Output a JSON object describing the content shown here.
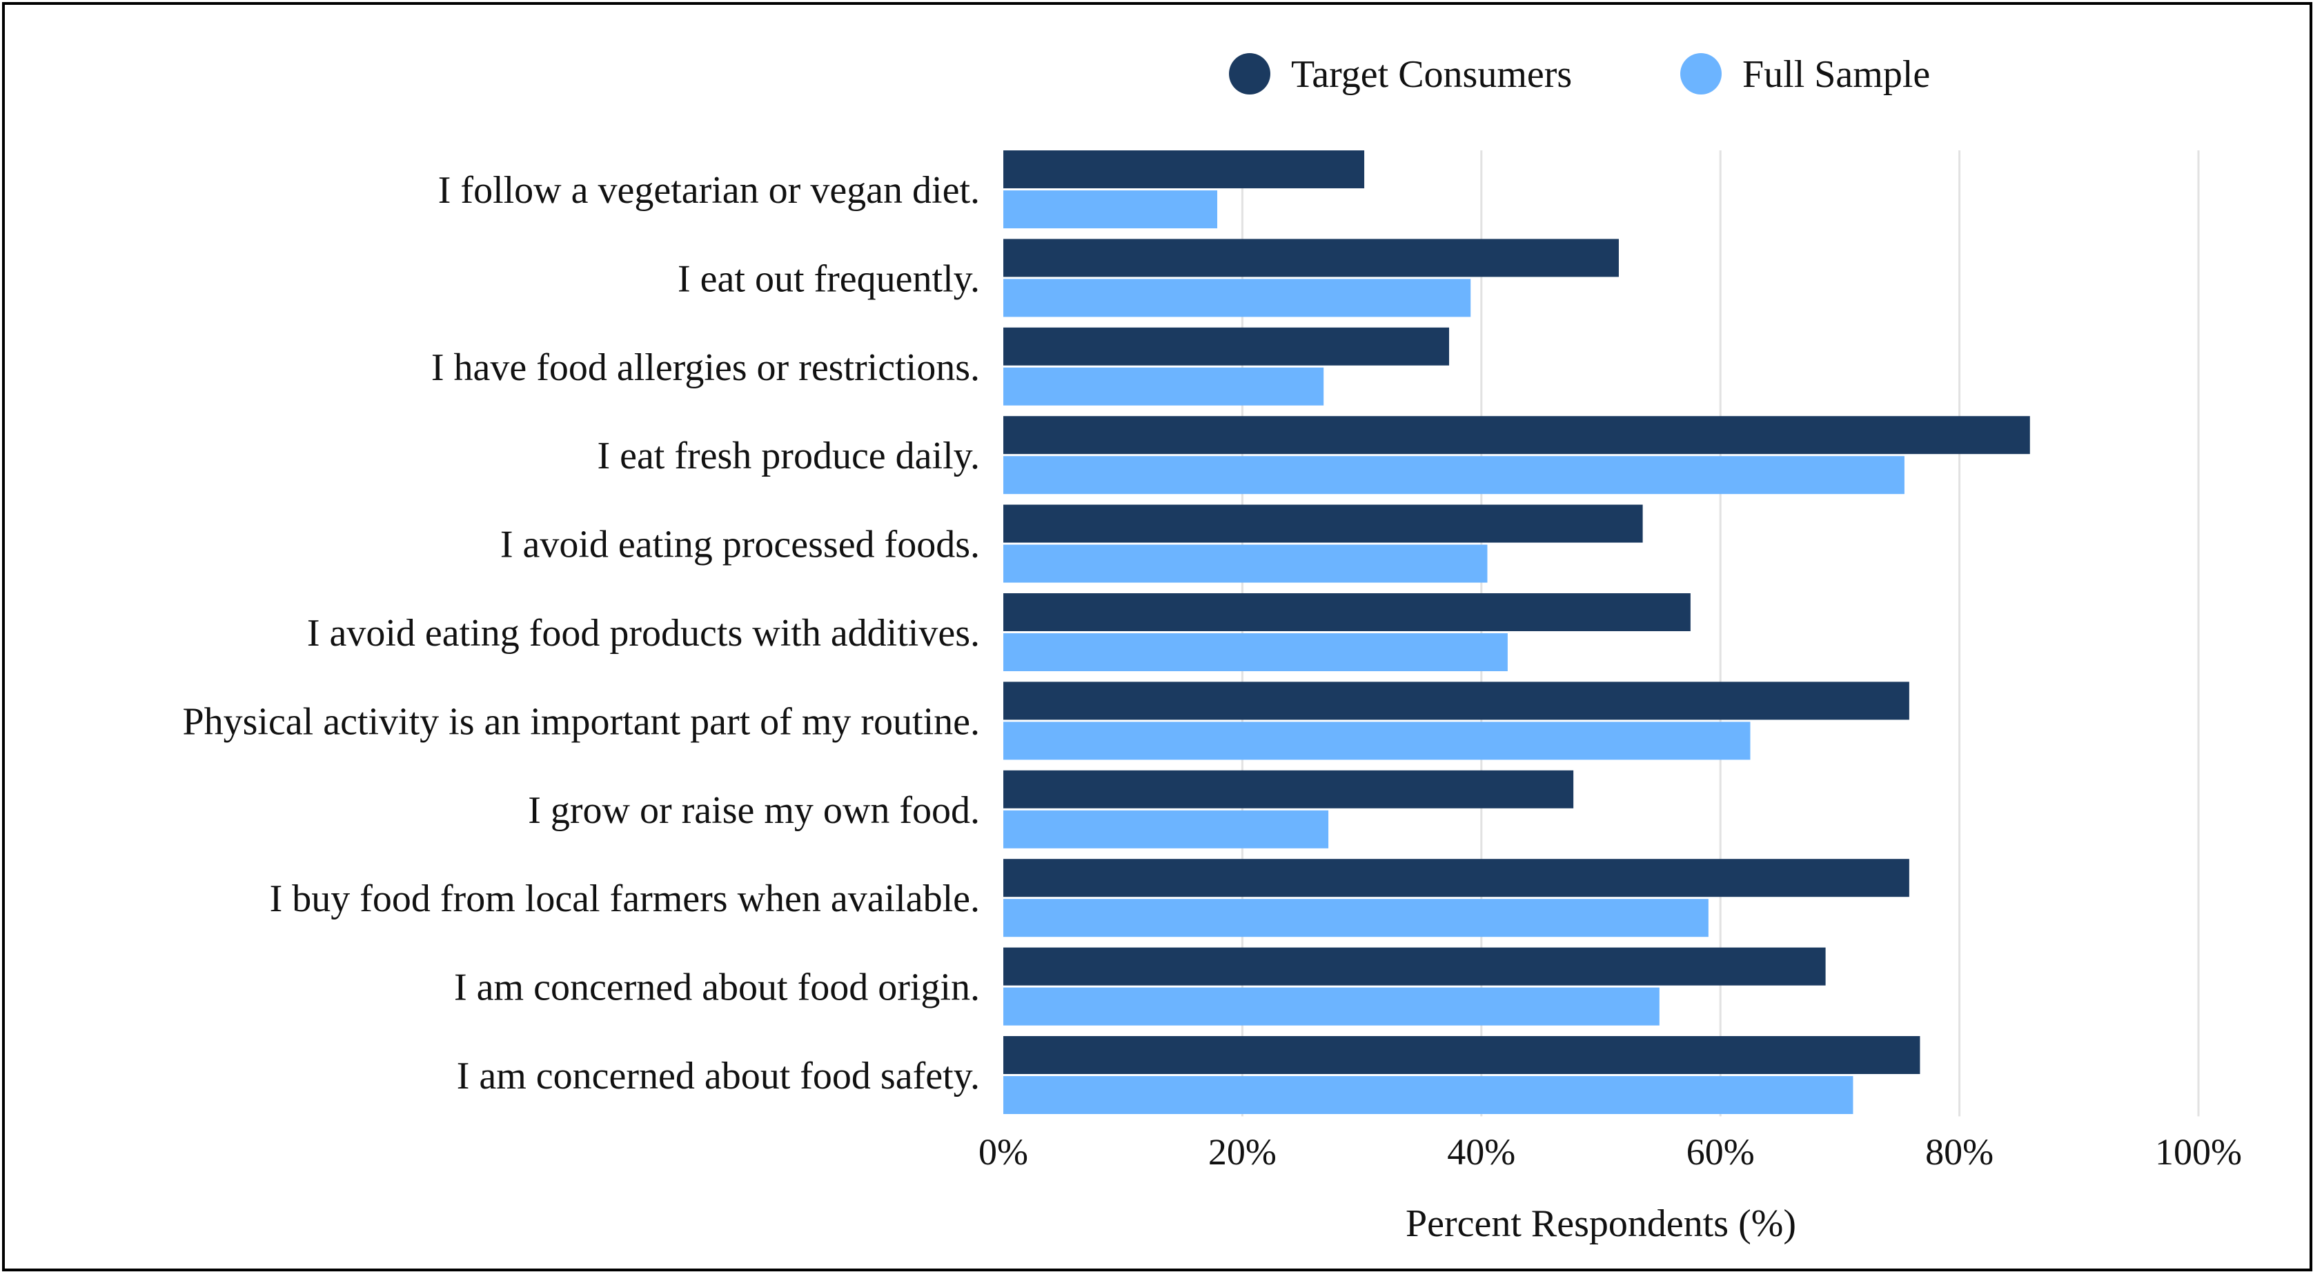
{
  "chart_data": {
    "type": "bar",
    "orientation": "horizontal",
    "title": "",
    "xlabel": "Percent Respondents (%)",
    "ylabel": "",
    "xlim": [
      0,
      100
    ],
    "x_ticks": [
      "0%",
      "20%",
      "40%",
      "60%",
      "80%",
      "100%"
    ],
    "grid": "vertical",
    "legend_position": "top-right",
    "categories": [
      "I follow a vegetarian or vegan diet.",
      "I eat out frequently.",
      "I have food allergies or restrictions.",
      "I eat fresh produce daily.",
      "I avoid eating processed foods.",
      "I avoid eating food products with additives.",
      "Physical activity is an important part of my routine.",
      "I grow or raise my own food.",
      "I buy food from local farmers when available.",
      "I am concerned about food origin.",
      "I am concerned about food safety."
    ],
    "series": [
      {
        "name": "Target Consumers",
        "color": "#1b3a60",
        "values": [
          30.2,
          51.5,
          37.3,
          85.9,
          53.5,
          57.5,
          75.8,
          47.7,
          75.8,
          68.8,
          76.7
        ]
      },
      {
        "name": "Full Sample",
        "color": "#6cb4ff",
        "values": [
          17.9,
          39.1,
          26.8,
          75.4,
          40.5,
          42.2,
          62.5,
          27.2,
          59.0,
          54.9,
          71.1
        ]
      }
    ]
  }
}
